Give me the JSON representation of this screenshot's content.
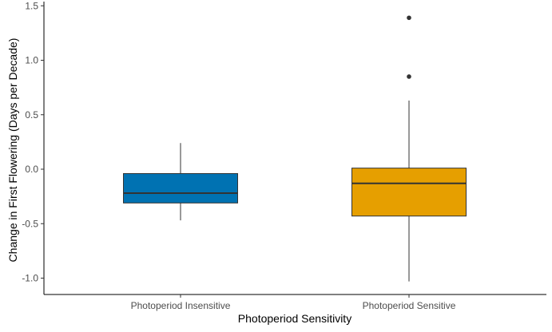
{
  "chart_data": {
    "type": "boxplot",
    "title": "",
    "xlabel": "Photoperiod Sensitivity",
    "ylabel": "Change in First Flowering (Days per Decade)",
    "ylim": [
      -1.15,
      1.5
    ],
    "yticks": [
      -1.0,
      -0.5,
      0.0,
      0.5,
      1.0,
      1.5
    ],
    "ytick_labels": [
      "-1.0",
      "-0.5",
      "0.0",
      "0.5",
      "1.0",
      "1.5"
    ],
    "grid": false,
    "legend": "none",
    "categories": [
      "Photoperiod Insensitive",
      "Photoperiod Sensitive"
    ],
    "boxes": [
      {
        "category": "Photoperiod Insensitive",
        "color": "#0072B2",
        "whisker_low": -0.47,
        "q1": -0.31,
        "median": -0.22,
        "q3": -0.04,
        "whisker_high": 0.24,
        "outliers": []
      },
      {
        "category": "Photoperiod Sensitive",
        "color": "#E69F00",
        "whisker_low": -1.03,
        "q1": -0.43,
        "median": -0.13,
        "q3": 0.01,
        "whisker_high": 0.63,
        "outliers": [
          0.85,
          1.39
        ]
      }
    ]
  }
}
